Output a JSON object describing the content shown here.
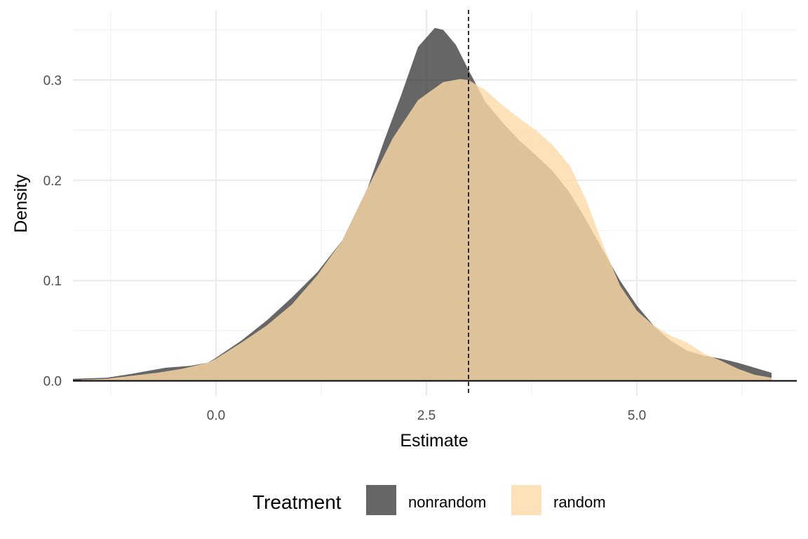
{
  "chart_data": {
    "type": "area",
    "xlabel": "Estimate",
    "ylabel": "Density",
    "xlim": [
      -1.7,
      6.9
    ],
    "ylim": [
      -0.015,
      0.37
    ],
    "x_ticks": [
      0.0,
      2.5,
      5.0
    ],
    "x_tick_labels": [
      "0.0",
      "2.5",
      "5.0"
    ],
    "x_minor_ticks": [
      -1.25,
      1.25,
      3.75,
      6.25
    ],
    "y_ticks": [
      0.0,
      0.1,
      0.2,
      0.3
    ],
    "y_tick_labels": [
      "0.0",
      "0.1",
      "0.2",
      "0.3"
    ],
    "y_minor_ticks": [
      0.05,
      0.15,
      0.25,
      0.35
    ],
    "grid": true,
    "reference_line": {
      "x": 3.0,
      "style": "dashed"
    },
    "legend": {
      "title": "Treatment",
      "position": "bottom",
      "entries": [
        "nonrandom",
        "random"
      ]
    },
    "series": [
      {
        "name": "nonrandom",
        "color": "#333333",
        "opacity": 0.75,
        "x": [
          -1.7,
          -1.3,
          -1.0,
          -0.8,
          -0.6,
          -0.3,
          -0.1,
          0.0,
          0.3,
          0.6,
          0.9,
          1.2,
          1.5,
          1.8,
          2.0,
          2.2,
          2.4,
          2.6,
          2.7,
          2.85,
          3.0,
          3.2,
          3.4,
          3.6,
          3.8,
          4.0,
          4.2,
          4.4,
          4.6,
          4.8,
          5.0,
          5.2,
          5.4,
          5.6,
          5.8,
          6.0,
          6.2,
          6.4,
          6.6
        ],
        "values": [
          0.002,
          0.003,
          0.007,
          0.01,
          0.013,
          0.015,
          0.018,
          0.023,
          0.04,
          0.06,
          0.083,
          0.108,
          0.14,
          0.192,
          0.24,
          0.285,
          0.333,
          0.352,
          0.35,
          0.335,
          0.31,
          0.278,
          0.258,
          0.24,
          0.225,
          0.209,
          0.188,
          0.16,
          0.13,
          0.1,
          0.075,
          0.055,
          0.04,
          0.03,
          0.025,
          0.022,
          0.018,
          0.013,
          0.008
        ]
      },
      {
        "name": "random",
        "color": "#fdd9a8",
        "opacity": 0.8,
        "x": [
          -1.6,
          -1.3,
          -1.0,
          -0.7,
          -0.4,
          -0.1,
          0.0,
          0.3,
          0.6,
          0.9,
          1.2,
          1.5,
          1.8,
          2.1,
          2.4,
          2.7,
          2.9,
          3.0,
          3.2,
          3.4,
          3.6,
          3.8,
          4.0,
          4.2,
          4.4,
          4.6,
          4.8,
          5.0,
          5.2,
          5.4,
          5.6,
          5.8,
          6.0,
          6.2,
          6.4,
          6.6
        ],
        "values": [
          0.001,
          0.002,
          0.005,
          0.008,
          0.012,
          0.018,
          0.022,
          0.038,
          0.055,
          0.076,
          0.105,
          0.14,
          0.192,
          0.242,
          0.28,
          0.298,
          0.301,
          0.3,
          0.29,
          0.275,
          0.262,
          0.25,
          0.235,
          0.215,
          0.18,
          0.135,
          0.095,
          0.07,
          0.055,
          0.045,
          0.038,
          0.027,
          0.02,
          0.012,
          0.006,
          0.003
        ]
      }
    ]
  }
}
